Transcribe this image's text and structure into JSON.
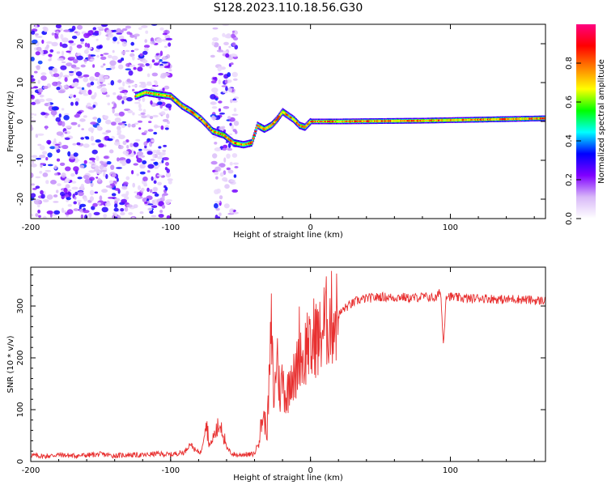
{
  "figure_title": "S128.2023.110.18.56.G30",
  "chart_data": [
    {
      "type": "heatmap",
      "title": "S128.2023.110.18.56.G30",
      "xlabel": "Height of straight line (km)",
      "ylabel": "Frequency (Hz)",
      "xlim": [
        -200,
        168
      ],
      "ylim": [
        -25,
        25
      ],
      "xticks": [
        -200,
        -100,
        0,
        100
      ],
      "yticks": [
        -20,
        -10,
        0,
        10,
        20
      ],
      "colorbar": {
        "label": "Normalized spectral amplitude",
        "range": [
          0.0,
          1.0
        ],
        "ticks": [
          0.0,
          0.2,
          0.4,
          0.6,
          0.8
        ],
        "tick_labels": [
          "0.0",
          "0.2",
          "0.4",
          "0.6",
          "0.8"
        ],
        "colors": [
          "#ffffff",
          "#d8b8f8",
          "#8000ff",
          "#0000ff",
          "#00ffff",
          "#00ff00",
          "#ffff00",
          "#ff8000",
          "#ff0000",
          "#ff0080"
        ]
      },
      "ridge": {
        "x": [
          -125,
          -118,
          -110,
          -100,
          -92,
          -85,
          -78,
          -70,
          -62,
          -55,
          -48,
          -42,
          -38,
          -33,
          -28,
          -24,
          -20,
          -16,
          -12,
          -8,
          -4,
          0,
          20,
          50,
          80,
          110,
          140,
          168
        ],
        "y": [
          6.5,
          7.5,
          7.0,
          6.5,
          4.0,
          2.5,
          0.5,
          -2.5,
          -3.5,
          -5.5,
          -6.0,
          -5.5,
          -1.0,
          -2.0,
          -1.0,
          0.5,
          2.5,
          1.5,
          0.5,
          -1.0,
          -1.5,
          0.0,
          0.0,
          0.1,
          0.2,
          0.4,
          0.6,
          0.8
        ]
      },
      "noise_regions_x": [
        [
          -200,
          -100
        ],
        [
          -70,
          -53
        ]
      ]
    },
    {
      "type": "line",
      "xlabel": "Height of straight line (km)",
      "ylabel": "SNR (10 * v/v)",
      "xlim": [
        -200,
        168
      ],
      "ylim": [
        0,
        375
      ],
      "xticks": [
        -200,
        -100,
        0,
        100
      ],
      "yticks": [
        0,
        100,
        200,
        300
      ],
      "color": "#e83030",
      "series": [
        {
          "name": "SNR",
          "x": [
            -200,
            -190,
            -180,
            -170,
            -160,
            -150,
            -140,
            -130,
            -120,
            -110,
            -100,
            -95,
            -90,
            -86,
            -82,
            -78,
            -75,
            -72,
            -68,
            -64,
            -60,
            -56,
            -52,
            -48,
            -44,
            -40,
            -37,
            -34,
            -31,
            -28,
            -26,
            -24,
            -22,
            -20,
            -17,
            -14,
            -11,
            -8,
            -5,
            -2,
            0,
            3,
            6,
            9,
            12,
            15,
            18,
            21,
            24,
            27,
            30,
            33,
            36,
            40,
            45,
            50,
            55,
            60,
            65,
            70,
            75,
            80,
            85,
            90,
            93,
            95,
            97,
            100,
            105,
            110,
            115,
            120,
            125,
            130,
            135,
            140,
            145,
            150,
            155,
            160,
            165,
            168
          ],
          "y": [
            12,
            10,
            13,
            11,
            12,
            14,
            11,
            13,
            12,
            15,
            13,
            16,
            18,
            35,
            20,
            18,
            85,
            30,
            55,
            75,
            25,
            15,
            12,
            14,
            13,
            15,
            40,
            90,
            60,
            250,
            110,
            220,
            130,
            160,
            120,
            180,
            150,
            230,
            190,
            240,
            200,
            250,
            230,
            260,
            270,
            275,
            280,
            285,
            295,
            300,
            305,
            310,
            312,
            315,
            316,
            318,
            317,
            316,
            318,
            315,
            316,
            318,
            317,
            315,
            330,
            225,
            322,
            318,
            316,
            315,
            314,
            316,
            315,
            314,
            313,
            312,
            314,
            313,
            312,
            311,
            310,
            312
          ]
        }
      ]
    }
  ]
}
